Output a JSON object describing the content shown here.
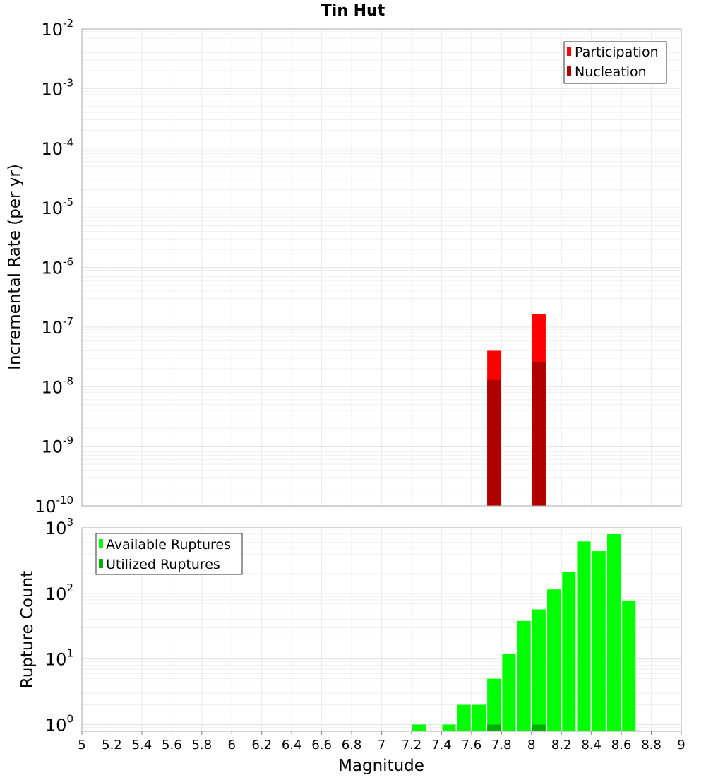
{
  "chart_data": [
    {
      "type": "bar",
      "title": "Tin Hut",
      "xlabel": "",
      "ylabel": "Incremental Rate (per yr)",
      "yscale": "log",
      "ylim": [
        1e-10,
        0.01
      ],
      "xlim": [
        5,
        9
      ],
      "y_tick_exponents": [
        "-2",
        "-3",
        "-4",
        "-5",
        "-6",
        "-7",
        "-8",
        "-9",
        "-10"
      ],
      "legend_position": "top-right",
      "series": [
        {
          "name": "Participation",
          "color": "#ff0000",
          "x": [
            7.75,
            8.05
          ],
          "values": [
            4e-08,
            1.65e-07
          ]
        },
        {
          "name": "Nucleation",
          "color": "#b00000",
          "x": [
            7.75,
            8.05
          ],
          "values": [
            1.3e-08,
            2.6e-08
          ]
        }
      ]
    },
    {
      "type": "bar",
      "xlabel": "Magnitude",
      "ylabel": "Rupture Count",
      "yscale": "log",
      "ylim": [
        0.79,
        1000
      ],
      "xlim": [
        5,
        9
      ],
      "x_ticks": [
        "5",
        "5.2",
        "5.4",
        "5.6",
        "5.8",
        "6",
        "6.2",
        "6.4",
        "6.6",
        "6.8",
        "7",
        "7.2",
        "7.4",
        "7.6",
        "7.8",
        "8",
        "8.2",
        "8.4",
        "8.6",
        "8.8",
        "9"
      ],
      "y_tick_exponents": [
        "3",
        "2",
        "1",
        "0"
      ],
      "legend_position": "top-left",
      "series": [
        {
          "name": "Available Ruptures",
          "color": "#00ff00",
          "x": [
            7.25,
            7.45,
            7.55,
            7.65,
            7.75,
            7.85,
            7.95,
            8.05,
            8.15,
            8.25,
            8.35,
            8.45,
            8.55,
            8.65
          ],
          "values": [
            1,
            1,
            2,
            2,
            5,
            12,
            38,
            57,
            115,
            215,
            620,
            440,
            800,
            78
          ]
        },
        {
          "name": "Utilized Ruptures",
          "color": "#00b000",
          "x": [
            7.75,
            8.05
          ],
          "values": [
            1,
            1
          ]
        }
      ]
    }
  ]
}
